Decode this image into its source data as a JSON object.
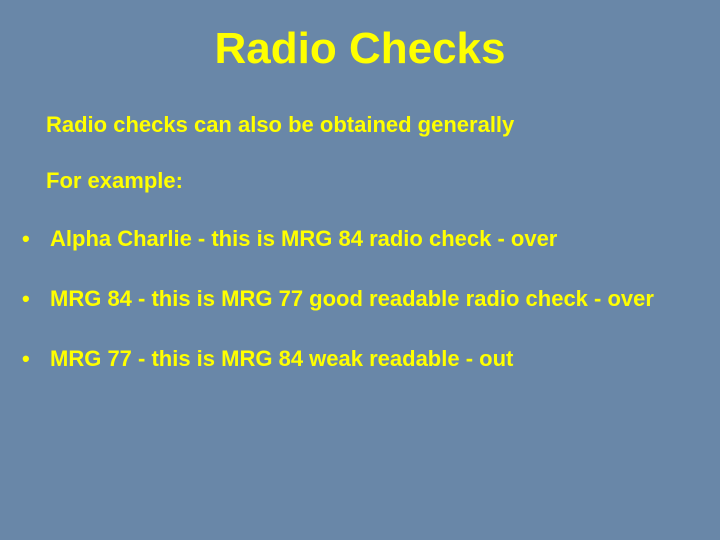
{
  "background_color": "#6987a8",
  "text_color": "#ffff00",
  "title": {
    "text": "Radio Checks",
    "fontsize": 44,
    "fontweight": "bold"
  },
  "intro": {
    "line1": "Radio checks can also be obtained generally",
    "line2": "For example:",
    "fontsize": 22,
    "fontweight": "bold"
  },
  "bullets": {
    "marker": "•",
    "fontsize": 22,
    "fontweight": "bold",
    "items": [
      "Alpha Charlie - this is MRG 84 radio check - over",
      "MRG 84 - this is MRG 77 good readable radio check - over",
      "MRG 77 - this is MRG 84 weak readable - out"
    ]
  }
}
